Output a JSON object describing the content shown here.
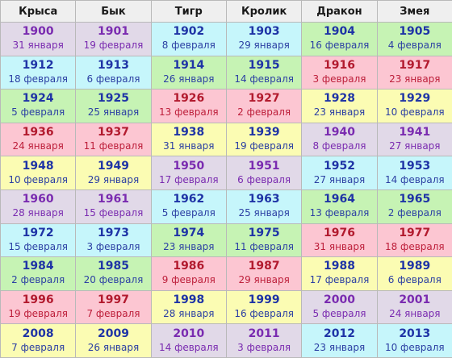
{
  "headers": [
    "Крыса",
    "Бык",
    "Тигр",
    "Кролик",
    "Дракон",
    "Змея"
  ],
  "colors": {
    "cyan": "#c6f6fb",
    "green": "#c6f3b4",
    "pink": "#fcc6d2",
    "yellow": "#fbfcb3",
    "lavender": "#e1d9e8"
  },
  "rows": [
    [
      {
        "year": "1900",
        "date": "31 января",
        "color": "lav"
      },
      {
        "year": "1901",
        "date": "19 февраля",
        "color": "lav"
      },
      {
        "year": "1902",
        "date": "8 февраля",
        "color": "cyan"
      },
      {
        "year": "1903",
        "date": "29 января",
        "color": "cyan"
      },
      {
        "year": "1904",
        "date": "16 февраля",
        "color": "green"
      },
      {
        "year": "1905",
        "date": "4 февраля",
        "color": "green"
      }
    ],
    [
      {
        "year": "1912",
        "date": "18 февраля",
        "color": "cyan"
      },
      {
        "year": "1913",
        "date": "6 февраля",
        "color": "cyan"
      },
      {
        "year": "1914",
        "date": "26 января",
        "color": "green"
      },
      {
        "year": "1915",
        "date": "14 февраля",
        "color": "green"
      },
      {
        "year": "1916",
        "date": "3 февраля",
        "color": "pink"
      },
      {
        "year": "1917",
        "date": "23 января",
        "color": "pink"
      }
    ],
    [
      {
        "year": "1924",
        "date": "5 февраля",
        "color": "green"
      },
      {
        "year": "1925",
        "date": "25 января",
        "color": "green"
      },
      {
        "year": "1926",
        "date": "13 февраля",
        "color": "pink"
      },
      {
        "year": "1927",
        "date": "2 февраля",
        "color": "pink"
      },
      {
        "year": "1928",
        "date": "23 января",
        "color": "yellow"
      },
      {
        "year": "1929",
        "date": "10 февраля",
        "color": "yellow"
      }
    ],
    [
      {
        "year": "1936",
        "date": "24 января",
        "color": "pink"
      },
      {
        "year": "1937",
        "date": "11 февраля",
        "color": "pink"
      },
      {
        "year": "1938",
        "date": "31 января",
        "color": "yellow"
      },
      {
        "year": "1939",
        "date": "19 февраля",
        "color": "yellow"
      },
      {
        "year": "1940",
        "date": "8 февраля",
        "color": "lav"
      },
      {
        "year": "1941",
        "date": "27 января",
        "color": "lav"
      }
    ],
    [
      {
        "year": "1948",
        "date": "10 февраля",
        "color": "yellow"
      },
      {
        "year": "1949",
        "date": "29 января",
        "color": "yellow"
      },
      {
        "year": "1950",
        "date": "17 февраля",
        "color": "lav"
      },
      {
        "year": "1951",
        "date": "6 февраля",
        "color": "lav"
      },
      {
        "year": "1952",
        "date": "27 января",
        "color": "cyan"
      },
      {
        "year": "1953",
        "date": "14 февраля",
        "color": "cyan"
      }
    ],
    [
      {
        "year": "1960",
        "date": "28 января",
        "color": "lav"
      },
      {
        "year": "1961",
        "date": "15 февраля",
        "color": "lav"
      },
      {
        "year": "1962",
        "date": "5 февраля",
        "color": "cyan"
      },
      {
        "year": "1963",
        "date": "25 января",
        "color": "cyan"
      },
      {
        "year": "1964",
        "date": "13 февраля",
        "color": "green"
      },
      {
        "year": "1965",
        "date": "2 февраля",
        "color": "green"
      }
    ],
    [
      {
        "year": "1972",
        "date": "15 февраля",
        "color": "cyan"
      },
      {
        "year": "1973",
        "date": "3 февраля",
        "color": "cyan"
      },
      {
        "year": "1974",
        "date": "23 января",
        "color": "green"
      },
      {
        "year": "1975",
        "date": "11 февраля",
        "color": "green"
      },
      {
        "year": "1976",
        "date": "31 января",
        "color": "pink"
      },
      {
        "year": "1977",
        "date": "18 февраля",
        "color": "pink"
      }
    ],
    [
      {
        "year": "1984",
        "date": "2 февраля",
        "color": "green"
      },
      {
        "year": "1985",
        "date": "20 февраля",
        "color": "green"
      },
      {
        "year": "1986",
        "date": "9 февраля",
        "color": "pink"
      },
      {
        "year": "1987",
        "date": "29 января",
        "color": "pink"
      },
      {
        "year": "1988",
        "date": "17 февраля",
        "color": "yellow"
      },
      {
        "year": "1989",
        "date": "6 февраля",
        "color": "yellow"
      }
    ],
    [
      {
        "year": "1996",
        "date": "19 февраля",
        "color": "pink"
      },
      {
        "year": "1997",
        "date": "7 февраля",
        "color": "pink"
      },
      {
        "year": "1998",
        "date": "28 января",
        "color": "yellow"
      },
      {
        "year": "1999",
        "date": "16 февраля",
        "color": "yellow"
      },
      {
        "year": "2000",
        "date": "5 февраля",
        "color": "lav"
      },
      {
        "year": "2001",
        "date": "24 января",
        "color": "lav"
      }
    ],
    [
      {
        "year": "2008",
        "date": "7 февраля",
        "color": "yellow"
      },
      {
        "year": "2009",
        "date": "26 января",
        "color": "yellow"
      },
      {
        "year": "2010",
        "date": "14 февраля",
        "color": "lav"
      },
      {
        "year": "2011",
        "date": "3 февраля",
        "color": "lav"
      },
      {
        "year": "2012",
        "date": "23 января",
        "color": "cyan"
      },
      {
        "year": "2013",
        "date": "10 февраля",
        "color": "cyan"
      }
    ]
  ]
}
